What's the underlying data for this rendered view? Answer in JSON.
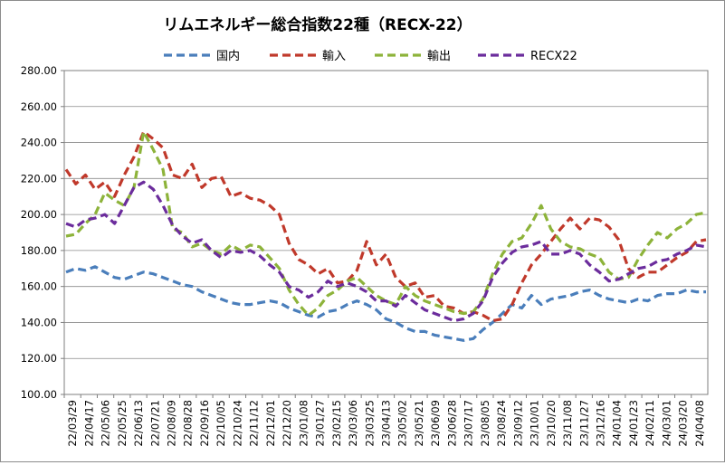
{
  "chart_data": {
    "type": "line",
    "title": "リムエネルギー総合指数22種（RECX-22）",
    "ylim": [
      100,
      280
    ],
    "yticks": [
      "100.00",
      "120.00",
      "140.00",
      "160.00",
      "180.00",
      "200.00",
      "220.00",
      "240.00",
      "260.00",
      "280.00"
    ],
    "grid": true,
    "legend_position": "top",
    "xticks": [
      "22/03/29",
      "22/04/17",
      "22/05/06",
      "22/05/25",
      "22/06/13",
      "22/07/21",
      "22/08/09",
      "22/08/28",
      "22/09/16",
      "22/10/05",
      "22/10/24",
      "22/11/12",
      "22/12/01",
      "22/12/20",
      "23/01/08",
      "23/01/27",
      "23/02/15",
      "23/03/06",
      "23/03/25",
      "23/04/13",
      "23/05/02",
      "23/05/21",
      "23/06/09",
      "23/06/28",
      "23/07/17",
      "23/08/05",
      "23/08/24",
      "23/09/12",
      "23/10/01",
      "23/10/20",
      "23/11/08",
      "23/11/27",
      "23/12/16",
      "24/01/04",
      "24/01/23",
      "24/02/11",
      "24/03/01",
      "24/03/20",
      "24/04/08"
    ],
    "series": [
      {
        "name": "国内",
        "color": "#4a7ebb",
        "values": [
          168,
          170,
          169,
          171,
          168,
          165,
          164,
          166,
          168,
          167,
          165,
          163,
          161,
          160,
          157,
          155,
          153,
          151,
          150,
          150,
          151,
          152,
          151,
          148,
          146,
          144,
          143,
          146,
          147,
          150,
          152,
          150,
          147,
          142,
          140,
          137,
          135,
          135,
          133,
          132,
          131,
          130,
          131,
          136,
          140,
          145,
          150,
          148,
          155,
          150,
          153,
          154,
          155,
          157,
          158,
          155,
          153,
          152,
          151,
          153,
          152,
          155,
          156,
          156,
          158,
          157,
          157
        ]
      },
      {
        "name": "輸入",
        "color": "#c0392b",
        "values": [
          225,
          217,
          222,
          214,
          218,
          210,
          222,
          232,
          246,
          242,
          237,
          222,
          220,
          228,
          215,
          220,
          221,
          210,
          212,
          209,
          208,
          205,
          200,
          184,
          175,
          172,
          167,
          170,
          162,
          163,
          169,
          185,
          172,
          178,
          165,
          160,
          162,
          154,
          155,
          149,
          148,
          145,
          146,
          144,
          141,
          142,
          150,
          162,
          172,
          178,
          185,
          192,
          198,
          192,
          198,
          197,
          193,
          186,
          170,
          165,
          168,
          168,
          172,
          176,
          179,
          185,
          186
        ]
      },
      {
        "name": "輸出",
        "color": "#8db33a",
        "values": [
          188,
          189,
          195,
          200,
          212,
          208,
          205,
          215,
          246,
          236,
          225,
          192,
          190,
          182,
          184,
          180,
          178,
          183,
          180,
          183,
          182,
          176,
          170,
          158,
          150,
          144,
          148,
          155,
          158,
          163,
          165,
          160,
          155,
          152,
          150,
          160,
          155,
          152,
          150,
          148,
          146,
          145,
          146,
          153,
          167,
          178,
          185,
          187,
          195,
          205,
          192,
          185,
          182,
          181,
          178,
          176,
          168,
          164,
          165,
          175,
          183,
          190,
          187,
          192,
          195,
          200,
          201
        ]
      },
      {
        "name": "RECX22",
        "color": "#6b2c9c",
        "values": [
          195,
          193,
          197,
          198,
          200,
          195,
          205,
          215,
          218,
          214,
          205,
          194,
          188,
          184,
          186,
          180,
          176,
          180,
          179,
          180,
          177,
          172,
          168,
          160,
          158,
          154,
          157,
          163,
          160,
          162,
          160,
          157,
          152,
          152,
          149,
          155,
          151,
          147,
          145,
          143,
          141,
          142,
          145,
          152,
          165,
          173,
          179,
          182,
          183,
          185,
          178,
          178,
          180,
          178,
          172,
          168,
          163,
          164,
          167,
          170,
          171,
          174,
          175,
          178,
          180,
          183,
          182
        ]
      }
    ]
  }
}
